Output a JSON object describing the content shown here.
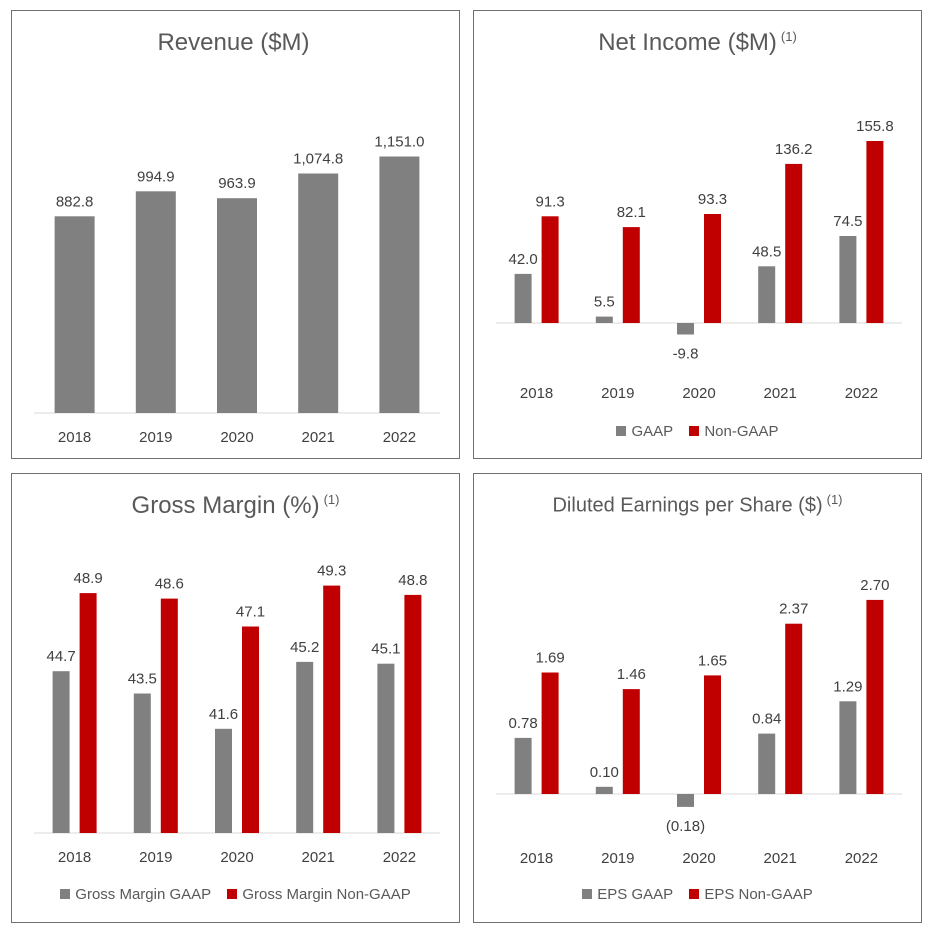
{
  "colors": {
    "gaap": "#808080",
    "non_gaap": "#c00000",
    "axis": "#d9d9d9"
  },
  "chart_data": [
    {
      "id": "revenue",
      "type": "bar",
      "title": "Revenue ($M)",
      "footnote": "",
      "categories": [
        "2018",
        "2019",
        "2020",
        "2021",
        "2022"
      ],
      "series": [
        {
          "name": "Revenue",
          "color": "#808080",
          "values": [
            882.8,
            994.9,
            963.9,
            1074.8,
            1151.0
          ],
          "labels": [
            "882.8",
            "994.9",
            "963.9",
            "1,074.8",
            "1,151.0"
          ]
        }
      ],
      "ylim": [
        0,
        1400
      ],
      "legend": []
    },
    {
      "id": "net-income",
      "type": "bar",
      "title": "Net Income ($M)",
      "footnote": "(1)",
      "categories": [
        "2018",
        "2019",
        "2020",
        "2021",
        "2022"
      ],
      "series": [
        {
          "name": "GAAP",
          "color": "#808080",
          "values": [
            42.0,
            5.5,
            -9.8,
            48.5,
            74.5
          ],
          "labels": [
            "42.0",
            "5.5",
            "-9.8",
            "48.5",
            "74.5"
          ]
        },
        {
          "name": "Non-GAAP",
          "color": "#c00000",
          "values": [
            91.3,
            82.1,
            93.3,
            136.2,
            155.8
          ],
          "labels": [
            "91.3",
            "82.1",
            "93.3",
            "136.2",
            "155.8"
          ]
        }
      ],
      "ylim": [
        -20,
        190
      ],
      "legend": [
        "GAAP",
        "Non-GAAP"
      ]
    },
    {
      "id": "gross-margin",
      "type": "bar",
      "title": "Gross Margin (%)",
      "footnote": "(1)",
      "categories": [
        "2018",
        "2019",
        "2020",
        "2021",
        "2022"
      ],
      "series": [
        {
          "name": "Gross Margin GAAP",
          "color": "#808080",
          "values": [
            44.7,
            43.5,
            41.6,
            45.2,
            45.1
          ],
          "labels": [
            "44.7",
            "43.5",
            "41.6",
            "45.2",
            "45.1"
          ]
        },
        {
          "name": "Gross Margin Non-GAAP",
          "color": "#c00000",
          "values": [
            48.9,
            48.6,
            47.1,
            49.3,
            48.8
          ],
          "labels": [
            "48.9",
            "48.6",
            "47.1",
            "49.3",
            "48.8"
          ]
        }
      ],
      "ylim": [
        36,
        51
      ],
      "legend": [
        "Gross Margin GAAP",
        "Gross Margin Non-GAAP"
      ]
    },
    {
      "id": "eps",
      "type": "bar",
      "title": "Diluted Earnings per Share ($)",
      "footnote": "(1)",
      "categories": [
        "2018",
        "2019",
        "2020",
        "2021",
        "2022"
      ],
      "series": [
        {
          "name": "EPS GAAP",
          "color": "#808080",
          "values": [
            0.78,
            0.1,
            -0.18,
            0.84,
            1.29
          ],
          "labels": [
            "0.78",
            "0.10",
            "(0.18)",
            "0.84",
            "1.29"
          ]
        },
        {
          "name": "EPS Non-GAAP",
          "color": "#c00000",
          "values": [
            1.69,
            1.46,
            1.65,
            2.37,
            2.7
          ],
          "labels": [
            "1.69",
            "1.46",
            "1.65",
            "2.37",
            "2.70"
          ]
        }
      ],
      "ylim": [
        -0.4,
        3.2
      ],
      "legend": [
        "EPS GAAP",
        "EPS Non-GAAP"
      ]
    }
  ]
}
